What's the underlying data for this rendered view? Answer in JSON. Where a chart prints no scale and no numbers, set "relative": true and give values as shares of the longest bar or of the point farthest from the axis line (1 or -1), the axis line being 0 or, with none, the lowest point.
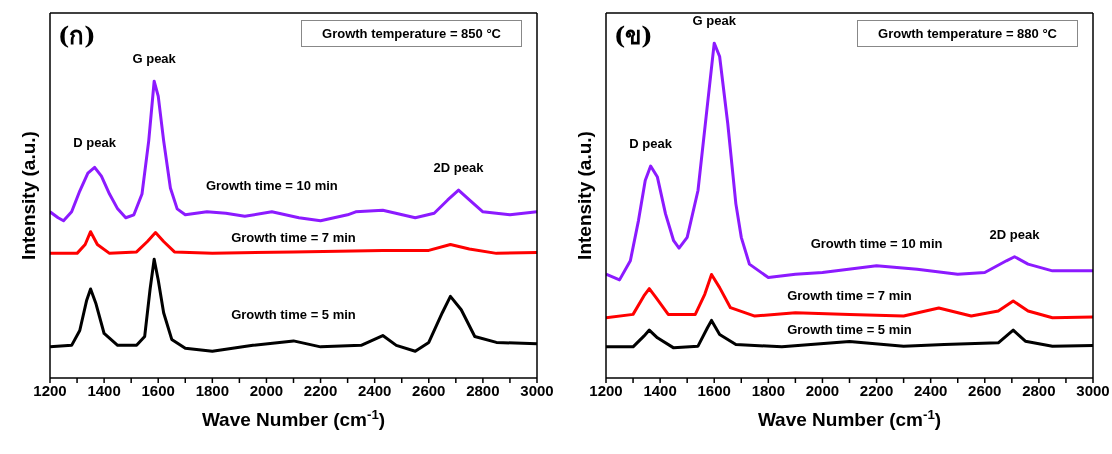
{
  "chart_data": [
    {
      "type": "line",
      "relative": true,
      "xlabel": "Wave Number (cm$^{-1}$)",
      "ylabel": "Intensity (a.u.)",
      "xlim": [
        1200,
        3000
      ],
      "xticks": [
        1200,
        {
          "value": 1300,
          "label": null
        },
        1400,
        {
          "value": 1500,
          "label": null
        },
        1600,
        {
          "value": 1700,
          "label": null
        },
        1800,
        {
          "value": 1900,
          "label": null
        },
        2000,
        {
          "value": 2100,
          "label": null
        },
        2200,
        {
          "value": 2300,
          "label": null
        },
        2400,
        {
          "value": 2500,
          "label": null
        },
        2600,
        {
          "value": 2700,
          "label": null
        },
        2800,
        {
          "value": 2900,
          "label": null
        },
        3000
      ],
      "grid": false,
      "marker": "none",
      "line_style": "solid",
      "annotations": [
        "(ก)",
        "Growth temperature = 850 °C",
        "G peak",
        "D peak",
        "2D peak"
      ],
      "series": [
        {
          "name": "Growth time = 10 min",
          "color": "#8c1aff",
          "x": [
            1200,
            1230,
            1250,
            1280,
            1310,
            1340,
            1365,
            1390,
            1420,
            1450,
            1480,
            1510,
            1540,
            1565,
            1585,
            1600,
            1620,
            1645,
            1670,
            1700,
            1780,
            1850,
            1920,
            2020,
            2120,
            2200,
            2300,
            2330,
            2430,
            2550,
            2620,
            2670,
            2710,
            2750,
            2800,
            2900,
            3000
          ],
          "values": [
            0.56,
            0.54,
            0.53,
            0.56,
            0.63,
            0.69,
            0.71,
            0.68,
            0.62,
            0.57,
            0.54,
            0.55,
            0.62,
            0.8,
            1,
            0.95,
            0.8,
            0.64,
            0.57,
            0.55,
            0.56,
            0.555,
            0.545,
            0.56,
            0.54,
            0.53,
            0.55,
            0.56,
            0.565,
            0.54,
            0.555,
            0.6,
            0.633,
            0.6,
            0.56,
            0.55,
            0.56
          ]
        },
        {
          "name": "Growth time = 7 min",
          "color": "#ff0000",
          "x": [
            1200,
            1300,
            1330,
            1350,
            1375,
            1420,
            1520,
            1560,
            1590,
            1620,
            1660,
            1800,
            2100,
            2430,
            2600,
            2680,
            2750,
            2850,
            3000
          ],
          "values": [
            0.42,
            0.42,
            0.45,
            0.493,
            0.45,
            0.42,
            0.425,
            0.46,
            0.49,
            0.46,
            0.425,
            0.42,
            0.425,
            0.43,
            0.43,
            0.45,
            0.435,
            0.42,
            0.423
          ]
        },
        {
          "name": "Growth time = 5 min",
          "color": "#000000",
          "x": [
            1200,
            1280,
            1310,
            1335,
            1350,
            1370,
            1400,
            1450,
            1520,
            1550,
            1570,
            1585,
            1600,
            1620,
            1650,
            1700,
            1800,
            1950,
            2100,
            2200,
            2350,
            2430,
            2480,
            2550,
            2600,
            2650,
            2680,
            2720,
            2770,
            2850,
            3000
          ],
          "values": [
            0.105,
            0.11,
            0.16,
            0.26,
            0.3,
            0.25,
            0.15,
            0.11,
            0.11,
            0.14,
            0.3,
            0.4,
            0.33,
            0.22,
            0.13,
            0.1,
            0.09,
            0.11,
            0.125,
            0.105,
            0.11,
            0.143,
            0.11,
            0.09,
            0.12,
            0.22,
            0.275,
            0.23,
            0.14,
            0.12,
            0.115
          ]
        }
      ]
    },
    {
      "type": "line",
      "relative": true,
      "xlabel": "Wave Number (cm$^{-1}$)",
      "ylabel": "Intensity (a.u.)",
      "xlim": [
        1200,
        3000
      ],
      "xticks": [
        1200,
        {
          "value": 1300,
          "label": null
        },
        1400,
        {
          "value": 1500,
          "label": null
        },
        1600,
        {
          "value": 1700,
          "label": null
        },
        1800,
        {
          "value": 1900,
          "label": null
        },
        2000,
        {
          "value": 2100,
          "label": null
        },
        2200,
        {
          "value": 2300,
          "label": null
        },
        2400,
        {
          "value": 2500,
          "label": null
        },
        2600,
        {
          "value": 2700,
          "label": null
        },
        2800,
        {
          "value": 2900,
          "label": null
        },
        3000
      ],
      "grid": false,
      "marker": "none",
      "line_style": "solid",
      "annotations": [
        "(ข)",
        "Growth temperature = 880 °C",
        "G peak",
        "D peak",
        "2D peak"
      ],
      "series": [
        {
          "name": "Growth time = 10 min",
          "color": "#8c1aff",
          "x": [
            1200,
            1250,
            1290,
            1320,
            1345,
            1365,
            1390,
            1420,
            1450,
            1470,
            1500,
            1540,
            1570,
            1600,
            1620,
            1650,
            1680,
            1700,
            1730,
            1800,
            1900,
            2000,
            2200,
            2350,
            2500,
            2600,
            2680,
            2710,
            2760,
            2850,
            3000
          ],
          "values": [
            0.31,
            0.293,
            0.35,
            0.47,
            0.59,
            0.633,
            0.6,
            0.49,
            0.41,
            0.388,
            0.42,
            0.56,
            0.78,
            1,
            0.96,
            0.76,
            0.52,
            0.42,
            0.34,
            0.3,
            0.31,
            0.315,
            0.335,
            0.325,
            0.31,
            0.315,
            0.35,
            0.362,
            0.34,
            0.32,
            0.32
          ]
        },
        {
          "name": "Growth time = 7 min",
          "color": "#ff0000",
          "x": [
            1200,
            1300,
            1340,
            1360,
            1385,
            1430,
            1530,
            1565,
            1590,
            1620,
            1660,
            1750,
            1900,
            2100,
            2300,
            2430,
            2550,
            2650,
            2705,
            2760,
            2850,
            3000
          ],
          "values": [
            0.18,
            0.19,
            0.245,
            0.267,
            0.24,
            0.19,
            0.19,
            0.25,
            0.309,
            0.27,
            0.21,
            0.185,
            0.195,
            0.19,
            0.185,
            0.209,
            0.185,
            0.2,
            0.23,
            0.2,
            0.18,
            0.182
          ]
        },
        {
          "name": "Growth time = 5 min",
          "color": "#000000",
          "x": [
            1200,
            1300,
            1340,
            1360,
            1390,
            1450,
            1540,
            1575,
            1590,
            1620,
            1680,
            1850,
            2100,
            2300,
            2450,
            2650,
            2705,
            2750,
            2850,
            3000
          ],
          "values": [
            0.093,
            0.093,
            0.125,
            0.143,
            0.12,
            0.09,
            0.095,
            0.15,
            0.172,
            0.13,
            0.1,
            0.093,
            0.109,
            0.095,
            0.1,
            0.105,
            0.143,
            0.11,
            0.095,
            0.097
          ]
        }
      ]
    }
  ]
}
